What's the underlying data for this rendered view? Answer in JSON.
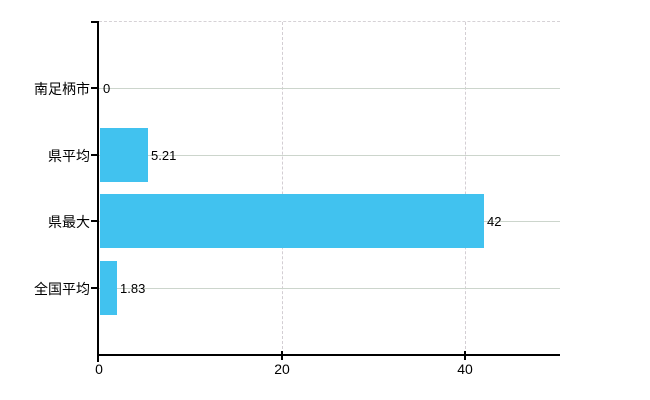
{
  "chart_data": {
    "type": "bar",
    "orientation": "horizontal",
    "title": "",
    "xlabel": "",
    "ylabel": "",
    "categories": [
      "南足柄市",
      "県平均",
      "県最大",
      "全国平均"
    ],
    "values": [
      0,
      5.21,
      42,
      1.83
    ],
    "value_labels": [
      "0",
      "5.21",
      "42",
      "1.83"
    ],
    "x_ticks": [
      0,
      20,
      40
    ],
    "x_tick_labels": [
      "0",
      "20",
      "40"
    ],
    "xlim": [
      0,
      50.3
    ],
    "grid": true,
    "legend": false
  },
  "colors": {
    "bar": "#41c2ef",
    "h_gridline": "#ccd5cc",
    "v_gridline": "#d3ced3",
    "top_border": "#d6d2d6",
    "axis": "#000000",
    "text": "#000000",
    "background": "#ffffff"
  }
}
